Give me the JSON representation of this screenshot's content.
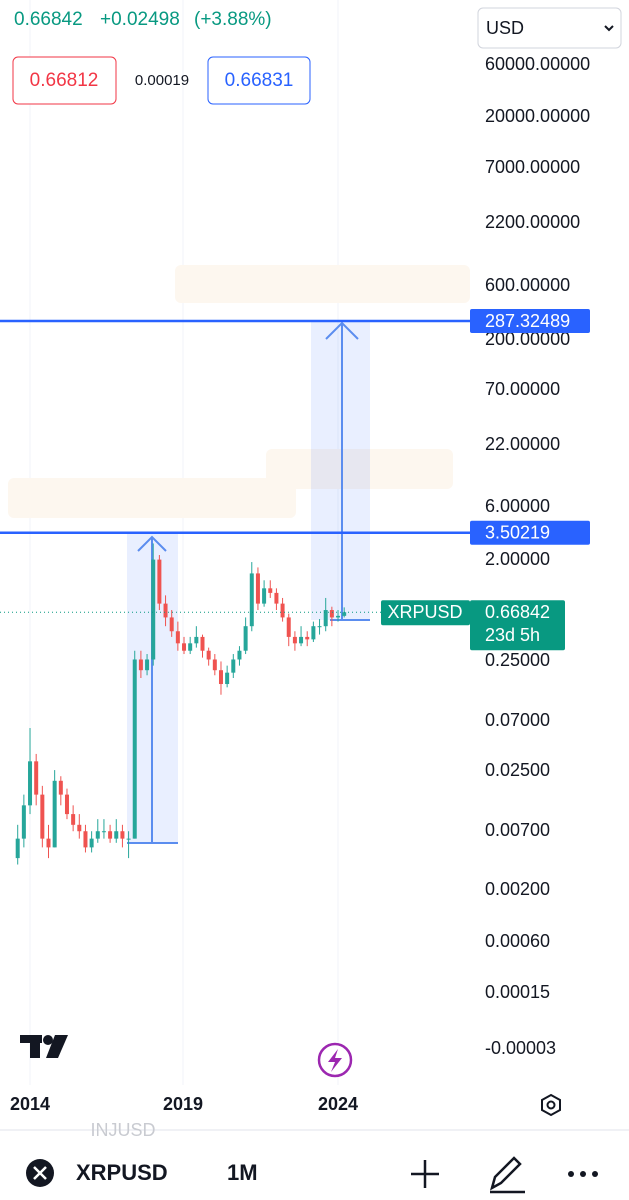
{
  "header": {
    "price": "0.66842",
    "change": "+0.02498",
    "change_percent": "(+3.88%)"
  },
  "quote": {
    "bid": "0.66812",
    "spread": "0.00019",
    "ask": "0.66831"
  },
  "currency": "USD",
  "price_axis": [
    "60000.00000",
    "20000.00000",
    "7000.00000",
    "2200.00000",
    "600.00000",
    "200.00000",
    "70.00000",
    "22.00000",
    "6.00000",
    "2.00000",
    "0.25000",
    "0.07000",
    "0.02500",
    "0.00700",
    "0.00200",
    "0.00060",
    "0.00015",
    "-0.00003"
  ],
  "chart": {
    "symbol_label": "XRPUSD",
    "last_price": "0.66842",
    "countdown": "23d 5h",
    "levels": [
      287.32489,
      3.50219
    ],
    "x_labels": [
      "2014",
      "2019",
      "2024"
    ],
    "candles": [
      [
        0.004,
        0.008,
        0.0035,
        0.006
      ],
      [
        0.006,
        0.015,
        0.005,
        0.012
      ],
      [
        0.012,
        0.06,
        0.01,
        0.03
      ],
      [
        0.03,
        0.035,
        0.012,
        0.015
      ],
      [
        0.015,
        0.018,
        0.005,
        0.006
      ],
      [
        0.006,
        0.008,
        0.004,
        0.005
      ],
      [
        0.005,
        0.025,
        0.005,
        0.02
      ],
      [
        0.02,
        0.022,
        0.012,
        0.015
      ],
      [
        0.015,
        0.017,
        0.009,
        0.01
      ],
      [
        0.01,
        0.012,
        0.007,
        0.008
      ],
      [
        0.008,
        0.01,
        0.006,
        0.007
      ],
      [
        0.007,
        0.008,
        0.0045,
        0.005
      ],
      [
        0.005,
        0.007,
        0.0045,
        0.006
      ],
      [
        0.006,
        0.009,
        0.0055,
        0.007
      ],
      [
        0.007,
        0.009,
        0.006,
        0.007
      ],
      [
        0.007,
        0.008,
        0.0055,
        0.006
      ],
      [
        0.006,
        0.009,
        0.0055,
        0.007
      ],
      [
        0.007,
        0.008,
        0.005,
        0.006
      ],
      [
        0.006,
        0.007,
        0.004,
        0.006
      ],
      [
        0.006,
        0.3,
        0.006,
        0.25
      ],
      [
        0.25,
        0.3,
        0.17,
        0.2
      ],
      [
        0.2,
        0.28,
        0.18,
        0.25
      ],
      [
        0.25,
        2.8,
        0.22,
        2.0
      ],
      [
        2.0,
        2.2,
        0.7,
        0.8
      ],
      [
        0.8,
        0.95,
        0.5,
        0.6
      ],
      [
        0.6,
        0.7,
        0.4,
        0.45
      ],
      [
        0.45,
        0.55,
        0.3,
        0.35
      ],
      [
        0.35,
        0.4,
        0.28,
        0.3
      ],
      [
        0.3,
        0.4,
        0.28,
        0.35
      ],
      [
        0.35,
        0.5,
        0.32,
        0.4
      ],
      [
        0.4,
        0.42,
        0.26,
        0.3
      ],
      [
        0.3,
        0.32,
        0.22,
        0.25
      ],
      [
        0.25,
        0.28,
        0.18,
        0.2
      ],
      [
        0.2,
        0.24,
        0.12,
        0.15
      ],
      [
        0.15,
        0.22,
        0.14,
        0.19
      ],
      [
        0.19,
        0.28,
        0.17,
        0.25
      ],
      [
        0.25,
        0.33,
        0.22,
        0.3
      ],
      [
        0.3,
        0.6,
        0.28,
        0.5
      ],
      [
        0.5,
        1.9,
        0.45,
        1.5
      ],
      [
        1.5,
        1.7,
        0.7,
        0.8
      ],
      [
        0.8,
        1.3,
        0.75,
        1.1
      ],
      [
        1.1,
        1.3,
        0.9,
        1.0
      ],
      [
        1.0,
        1.1,
        0.7,
        0.8
      ],
      [
        0.8,
        0.9,
        0.55,
        0.6
      ],
      [
        0.6,
        0.65,
        0.33,
        0.4
      ],
      [
        0.4,
        0.45,
        0.3,
        0.35
      ],
      [
        0.35,
        0.5,
        0.33,
        0.4
      ],
      [
        0.4,
        0.45,
        0.33,
        0.38
      ],
      [
        0.38,
        0.55,
        0.36,
        0.5
      ],
      [
        0.5,
        0.58,
        0.42,
        0.5
      ],
      [
        0.5,
        0.9,
        0.45,
        0.7
      ],
      [
        0.7,
        0.75,
        0.5,
        0.6
      ],
      [
        0.6,
        0.7,
        0.55,
        0.62
      ],
      [
        0.62,
        0.74,
        0.6,
        0.66842
      ]
    ]
  },
  "ghost_symbol": "INJUSD",
  "toolbar": {
    "symbol": "XRPUSD",
    "interval": "1M"
  }
}
